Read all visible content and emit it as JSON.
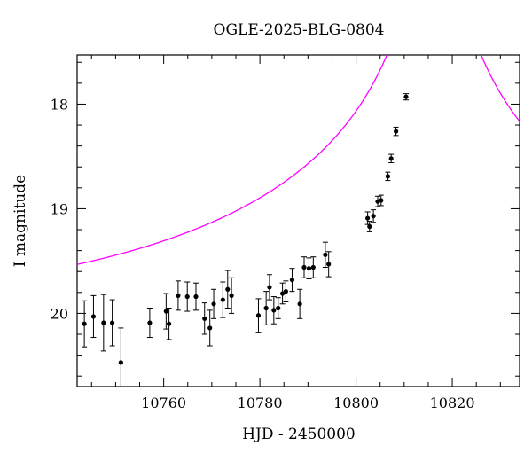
{
  "chart_data": {
    "type": "scatter",
    "title": "OGLE-2025-BLG-0804",
    "xlabel": "HJD - 2450000",
    "ylabel": "I magnitude",
    "xlim": [
      10742,
      10834
    ],
    "ylim": [
      20.7,
      17.53
    ],
    "y_inverted": true,
    "x_ticks": [
      10760,
      10780,
      10800,
      10820
    ],
    "y_ticks": [
      18,
      19,
      20
    ],
    "x_minor_step": 5,
    "y_minor_step": 0.2,
    "grid": false,
    "colors": {
      "points": "#000000",
      "model": "#ff00ff"
    },
    "series": [
      {
        "points": [
          {
            "x": 10743.5,
            "y": 20.1,
            "err": 0.22
          },
          {
            "x": 10745.4,
            "y": 20.03,
            "err": 0.2
          },
          {
            "x": 10747.5,
            "y": 20.09,
            "err": 0.27
          },
          {
            "x": 10749.3,
            "y": 20.09,
            "err": 0.22
          },
          {
            "x": 10751.1,
            "y": 20.47,
            "err": 0.33
          },
          {
            "x": 10757.1,
            "y": 20.09,
            "err": 0.14
          },
          {
            "x": 10760.5,
            "y": 19.98,
            "err": 0.17
          },
          {
            "x": 10761.1,
            "y": 20.1,
            "err": 0.15
          },
          {
            "x": 10763.0,
            "y": 19.83,
            "err": 0.14
          },
          {
            "x": 10764.9,
            "y": 19.84,
            "err": 0.14
          },
          {
            "x": 10766.7,
            "y": 19.84,
            "err": 0.13
          },
          {
            "x": 10768.5,
            "y": 20.05,
            "err": 0.15
          },
          {
            "x": 10769.6,
            "y": 20.14,
            "err": 0.17
          },
          {
            "x": 10770.4,
            "y": 19.91,
            "err": 0.14
          },
          {
            "x": 10772.3,
            "y": 19.87,
            "err": 0.17
          },
          {
            "x": 10773.3,
            "y": 19.77,
            "err": 0.18
          },
          {
            "x": 10774.1,
            "y": 19.83,
            "err": 0.17
          },
          {
            "x": 10779.7,
            "y": 20.02,
            "err": 0.16
          },
          {
            "x": 10781.3,
            "y": 19.95,
            "err": 0.16
          },
          {
            "x": 10782.0,
            "y": 19.75,
            "err": 0.12
          },
          {
            "x": 10782.9,
            "y": 19.97,
            "err": 0.13
          },
          {
            "x": 10783.8,
            "y": 19.95,
            "err": 0.1
          },
          {
            "x": 10784.7,
            "y": 19.81,
            "err": 0.1
          },
          {
            "x": 10785.4,
            "y": 19.79,
            "err": 0.1
          },
          {
            "x": 10786.7,
            "y": 19.68,
            "err": 0.11
          },
          {
            "x": 10788.3,
            "y": 19.91,
            "err": 0.14
          },
          {
            "x": 10789.2,
            "y": 19.56,
            "err": 0.1
          },
          {
            "x": 10790.2,
            "y": 19.57,
            "err": 0.1
          },
          {
            "x": 10791.1,
            "y": 19.56,
            "err": 0.1
          },
          {
            "x": 10793.6,
            "y": 19.44,
            "err": 0.12
          },
          {
            "x": 10794.3,
            "y": 19.53,
            "err": 0.12
          },
          {
            "x": 10802.4,
            "y": 19.09,
            "err": 0.06
          },
          {
            "x": 10802.8,
            "y": 19.17,
            "err": 0.05
          },
          {
            "x": 10803.6,
            "y": 19.07,
            "err": 0.06
          },
          {
            "x": 10804.5,
            "y": 18.93,
            "err": 0.05
          },
          {
            "x": 10805.2,
            "y": 18.92,
            "err": 0.05
          },
          {
            "x": 10806.6,
            "y": 18.69,
            "err": 0.04
          },
          {
            "x": 10807.3,
            "y": 18.52,
            "err": 0.04
          },
          {
            "x": 10808.3,
            "y": 18.26,
            "err": 0.04
          },
          {
            "x": 10810.4,
            "y": 17.93,
            "err": 0.03
          }
        ]
      }
    ],
    "model": {
      "style": "line",
      "baseline": 20.05,
      "t0": 10816.2,
      "u0": 0.01,
      "tE": 100
    }
  }
}
